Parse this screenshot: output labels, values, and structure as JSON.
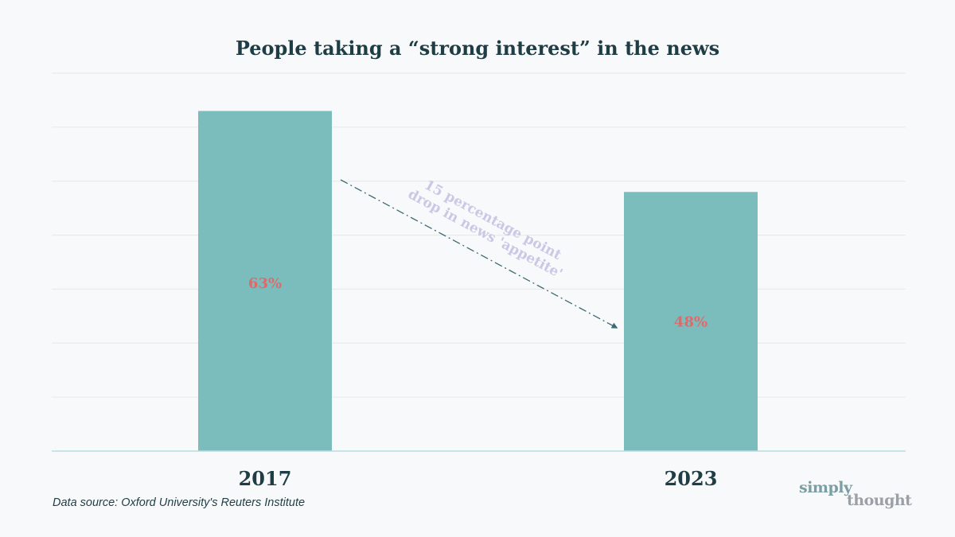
{
  "chart_data": {
    "type": "bar",
    "title": "People taking a “strong interest” in the news",
    "categories": [
      "2017",
      "2023"
    ],
    "values": [
      63,
      48
    ],
    "value_labels": [
      "63%",
      "48%"
    ],
    "ylim": [
      0,
      70
    ],
    "grid": true,
    "annotation": {
      "lines": [
        "15 percentage point",
        "drop in news 'appetite'"
      ]
    },
    "colors": {
      "bar": "#7bbdbd",
      "label": "#e06a6a",
      "gridline": "#e6e8ea",
      "axis": "#b8dde0",
      "annotation": "#c9c8e6",
      "arrow": "#3d6a72"
    }
  },
  "footer": {
    "source": "Data source: Oxford University's Reuters Institute"
  },
  "logo": {
    "line1": "simply",
    "line2": "thought"
  }
}
